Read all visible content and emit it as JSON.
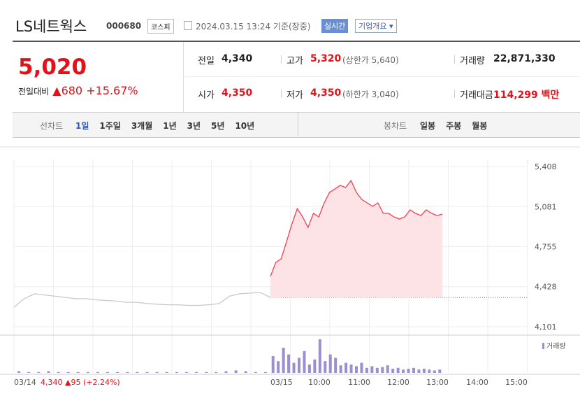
{
  "header": {
    "name": "LS네트웍스",
    "code": "000680",
    "market": "코스피",
    "datetime": "2024.03.15 13:24 기준(장중)",
    "realtime": "실시간",
    "company_info": "기업개요"
  },
  "price": {
    "current": "5,020",
    "change_label": "전일대비",
    "change": "680",
    "change_rate": "+15.67%"
  },
  "stats": [
    [
      {
        "label": "전일",
        "value": "4,340"
      },
      {
        "label": "고가",
        "value": "5,320",
        "note": "(상한가 5,640)"
      },
      {
        "label": "거래량",
        "value": "22,871,330"
      }
    ],
    [
      {
        "label": "시가",
        "value": "4,350"
      },
      {
        "label": "저가",
        "value": "4,350",
        "note": "(하한가 3,040)"
      },
      {
        "label": "거래대금",
        "value": "114,299 백만"
      }
    ]
  ],
  "tabs": {
    "line_label": "선차트",
    "line_items": [
      "1일",
      "1주일",
      "3개월",
      "1년",
      "3년",
      "5년",
      "10년"
    ],
    "candle_label": "봉차트",
    "candle_items": [
      "일봉",
      "주봉",
      "월봉"
    ]
  },
  "chart_data": {
    "type": "line",
    "ylim": [
      4101,
      5408
    ],
    "yticks": [
      {
        "value": 4101,
        "label": "4,101"
      },
      {
        "value": 4428,
        "label": "4,428"
      },
      {
        "value": 4755,
        "label": "4,755"
      },
      {
        "value": 5081,
        "label": "5,081"
      },
      {
        "value": 5408,
        "label": "5,408"
      }
    ],
    "reference": 4340,
    "series": [
      {
        "name": "03/14",
        "color": "#c8c8c8",
        "values": [
          4260,
          4330,
          4370,
          4360,
          4350,
          4340,
          4330,
          4330,
          4320,
          4315,
          4310,
          4300,
          4300,
          4290,
          4285,
          4280,
          4280,
          4275,
          4275,
          4280,
          4290,
          4350,
          4370,
          4375,
          4380,
          4340
        ]
      },
      {
        "name": "03/15",
        "color": "#f04050",
        "values": [
          4512,
          4626,
          4655,
          4797,
          4940,
          5065,
          4997,
          4911,
          5026,
          4997,
          5111,
          5197,
          5225,
          5254,
          5237,
          5294,
          5197,
          5140,
          5111,
          5083,
          5111,
          5026,
          5026,
          4997,
          4980,
          4997,
          5054,
          5026,
          5008,
          5054,
          5026,
          5008,
          5020
        ]
      }
    ],
    "volume_name": "거래량",
    "volume": {
      "color": "#9b8fd0",
      "prev": [
        2,
        1,
        1,
        2,
        1,
        1,
        1,
        1,
        1,
        1,
        1,
        1,
        1,
        1,
        1,
        1,
        1,
        1,
        1,
        1,
        1,
        2,
        3,
        2,
        1,
        1
      ],
      "today": [
        20,
        14,
        30,
        22,
        12,
        18,
        26,
        10,
        16,
        40,
        14,
        22,
        18,
        9,
        12,
        10,
        8,
        12,
        6,
        8,
        6,
        7,
        9,
        5,
        6,
        4,
        5,
        6,
        4,
        5,
        4,
        3,
        4
      ]
    },
    "x_labels": [
      "03/14",
      "03/15",
      "10:00",
      "11:00",
      "12:00",
      "13:00",
      "14:00",
      "15:00"
    ],
    "prev_summary": "4,340 ▲95 (+2.24%)"
  }
}
